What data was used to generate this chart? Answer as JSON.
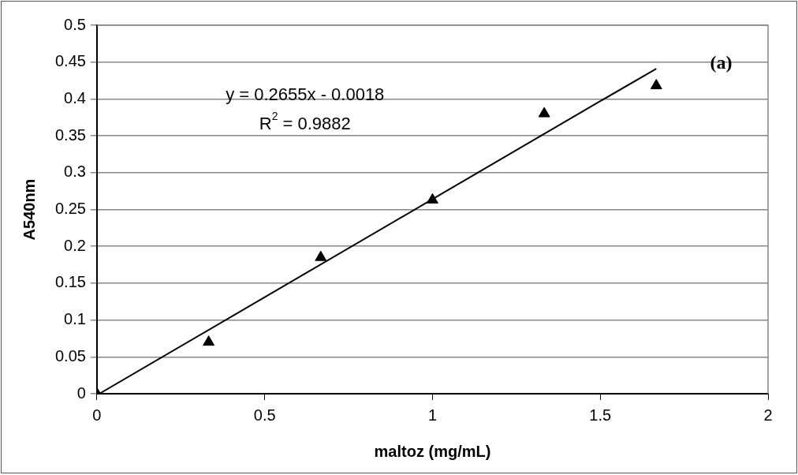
{
  "chart_data": {
    "type": "scatter",
    "xlabel": "maltoz (mg/mL)",
    "ylabel": "A540nm",
    "xlim": [
      0,
      2
    ],
    "xticks": [
      0,
      0.5,
      1,
      1.5,
      2
    ],
    "ylim": [
      0,
      0.5
    ],
    "yticks": [
      0,
      0.05,
      0.1,
      0.15,
      0.2,
      0.25,
      0.3,
      0.35,
      0.4,
      0.45,
      0.5
    ],
    "grid": "y",
    "legend": false,
    "series": [
      {
        "type": "scatter",
        "color": "#000000",
        "marker": "triangle",
        "x": [
          0,
          0.333,
          0.667,
          1,
          1.333,
          1.667
        ],
        "values": [
          0,
          0.07,
          0.185,
          0.263,
          0.38,
          0.418
        ]
      },
      {
        "type": "line",
        "color": "#000000",
        "marker": "none",
        "line_style": "solid",
        "x": [
          0.007,
          0.5,
          1,
          1.5,
          1.667
        ],
        "values": [
          0,
          0.131,
          0.264,
          0.397,
          0.441
        ]
      }
    ],
    "annotations": [
      "y = 0.2655x - 0.0018",
      "R$^{2}$ = 0.9882",
      "(a)"
    ]
  }
}
